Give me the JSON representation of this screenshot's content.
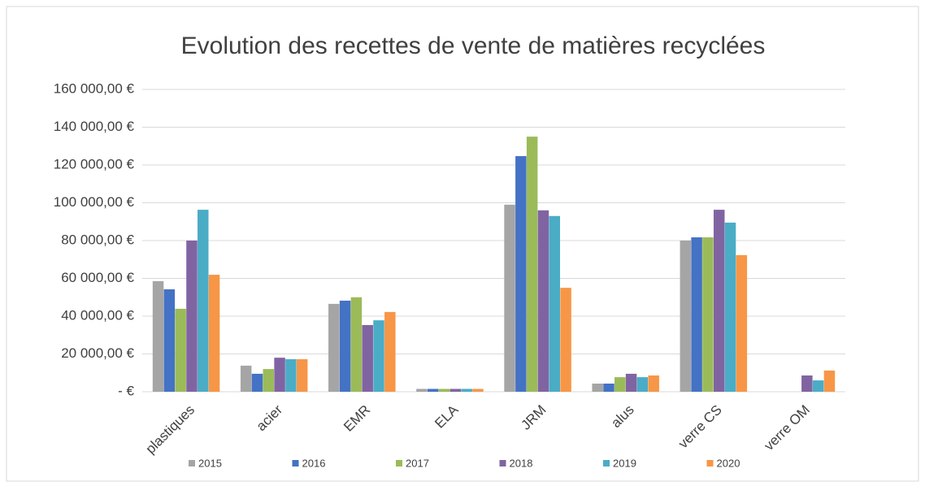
{
  "chart_data": {
    "type": "bar",
    "title": "Evolution des recettes de vente de matières recyclées",
    "categories": [
      "plastiques",
      "acier",
      "EMR",
      "ELA",
      "JRM",
      "alus",
      "verre CS",
      "verre OM"
    ],
    "series": [
      {
        "name": "2015",
        "color": "#a5a5a5",
        "values": [
          58500,
          13800,
          46500,
          1500,
          99000,
          4300,
          80000,
          0
        ]
      },
      {
        "name": "2016",
        "color": "#4472c4",
        "values": [
          54200,
          9500,
          48200,
          1500,
          124700,
          4300,
          81700,
          0
        ]
      },
      {
        "name": "2017",
        "color": "#9bbb59",
        "values": [
          43900,
          12000,
          50000,
          1500,
          135000,
          7700,
          81700,
          0
        ]
      },
      {
        "name": "2018",
        "color": "#8064a2",
        "values": [
          80000,
          18000,
          35300,
          1500,
          96000,
          9500,
          96300,
          8600
        ]
      },
      {
        "name": "2019",
        "color": "#4bacc6",
        "values": [
          96300,
          17200,
          37800,
          1500,
          93000,
          7700,
          89500,
          6000
        ]
      },
      {
        "name": "2020",
        "color": "#f79646",
        "values": [
          61900,
          17200,
          42200,
          1500,
          55000,
          8600,
          72300,
          11200
        ]
      }
    ],
    "ylim": [
      0,
      160000
    ],
    "yticks": [
      {
        "value": 0,
        "label": "-  €"
      },
      {
        "value": 20000,
        "label": "20 000,00 €"
      },
      {
        "value": 40000,
        "label": "40 000,00 €"
      },
      {
        "value": 60000,
        "label": "60 000,00 €"
      },
      {
        "value": 80000,
        "label": "80 000,00 €"
      },
      {
        "value": 100000,
        "label": "100 000,00 €"
      },
      {
        "value": 120000,
        "label": "120 000,00 €"
      },
      {
        "value": 140000,
        "label": "140 000,00 €"
      },
      {
        "value": 160000,
        "label": "160 000,00 €"
      }
    ],
    "grid": true,
    "legend": "bottom"
  }
}
